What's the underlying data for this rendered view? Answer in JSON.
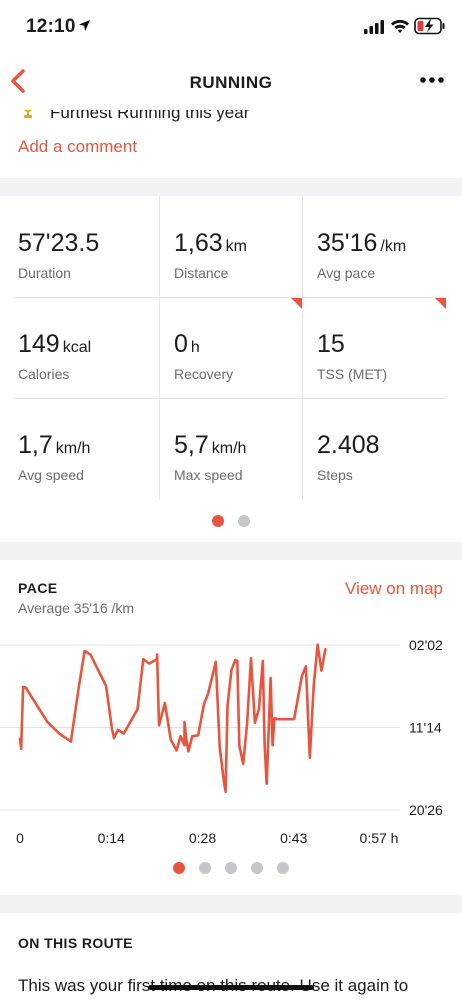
{
  "status_bar": {
    "time": "12:10"
  },
  "nav": {
    "title": "RUNNING"
  },
  "achievement": {
    "text": "Furthest Running this year"
  },
  "comment": {
    "label": "Add a comment"
  },
  "stats": [
    {
      "value": "57'23.5",
      "unit": "",
      "label": "Duration"
    },
    {
      "value": "1,63",
      "unit": "km",
      "label": "Distance"
    },
    {
      "value": "35'16",
      "unit": "/km",
      "label": "Avg pace"
    },
    {
      "value": "149",
      "unit": "kcal",
      "label": "Calories"
    },
    {
      "value": "0",
      "unit": "h",
      "label": "Recovery"
    },
    {
      "value": "15",
      "unit": "",
      "label": "TSS (MET)"
    },
    {
      "value": "1,7",
      "unit": "km/h",
      "label": "Avg speed"
    },
    {
      "value": "5,7",
      "unit": "km/h",
      "label": "Max speed"
    },
    {
      "value": "2.408",
      "unit": "",
      "label": "Steps"
    }
  ],
  "stats_pager": {
    "pages": 2,
    "active": 0
  },
  "pace": {
    "title": "PACE",
    "subtitle": "Average 35'16 /km",
    "map_link": "View on map"
  },
  "chart_data": {
    "type": "line",
    "x_unit": "h",
    "xlim": [
      0,
      0.95
    ],
    "y_ticks": [
      "02'02",
      "11'14",
      "20'26"
    ],
    "x_ticks": [
      "0",
      "0:14",
      "0:28",
      "0:43",
      "0:57 h"
    ],
    "ylim_minutes_per_km": [
      2.03,
      20.43
    ],
    "y_inverted": true,
    "grid": true,
    "series": [
      {
        "color": "#e8553f",
        "x": [
          0.0,
          0.003,
          0.005,
          0.008,
          0.015,
          0.07,
          0.1,
          0.13,
          0.15,
          0.165,
          0.18,
          0.22,
          0.235,
          0.24,
          0.25,
          0.265,
          0.3,
          0.315,
          0.33,
          0.35,
          0.35,
          0.355,
          0.37,
          0.385,
          0.4,
          0.41,
          0.42,
          0.42,
          0.425,
          0.43,
          0.44,
          0.455,
          0.47,
          0.48,
          0.5,
          0.51,
          0.52,
          0.525,
          0.53,
          0.54,
          0.55,
          0.555,
          0.56,
          0.57,
          0.58,
          0.59,
          0.6,
          0.61,
          0.62,
          0.625,
          0.63,
          0.64,
          0.645,
          0.65,
          0.66,
          0.7,
          0.72,
          0.73,
          0.74,
          0.75,
          0.76,
          0.77,
          0.78
        ],
        "y": [
          12.5,
          13.6,
          10.6,
          6.7,
          6.8,
          10.6,
          11.9,
          12.8,
          6.8,
          2.7,
          3.1,
          6.6,
          11.4,
          12.4,
          11.5,
          11.9,
          9.2,
          3.6,
          4.1,
          3.6,
          3.1,
          11.0,
          8.5,
          12.6,
          13.8,
          12.2,
          13.2,
          10.6,
          12.6,
          13.9,
          12.2,
          12.1,
          8.6,
          7.5,
          3.9,
          13.4,
          17.0,
          18.4,
          8.8,
          4.8,
          3.7,
          3.8,
          13.2,
          15.3,
          10.8,
          3.5,
          10.7,
          9.2,
          3.8,
          13.4,
          17.5,
          5.7,
          13.2,
          10.2,
          10.3,
          10.3,
          5.5,
          4.4,
          14.6,
          6.6,
          2.0,
          4.9,
          2.5
        ]
      }
    ]
  },
  "chart_pager": {
    "pages": 5,
    "active": 0
  },
  "route": {
    "title": "ON THIS ROUTE",
    "text": "This was your first time on this route. Use it again to compare performance."
  }
}
